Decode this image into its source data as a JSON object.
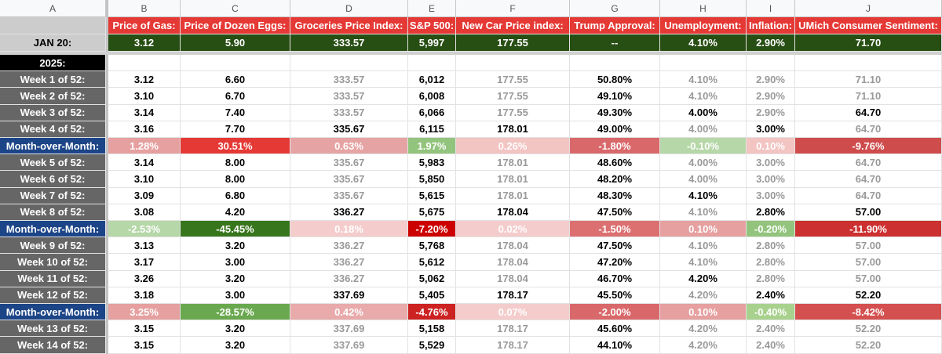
{
  "sheet": {
    "columns": [
      "A",
      "B",
      "C",
      "D",
      "E",
      "F",
      "G",
      "H",
      "I",
      "J"
    ],
    "headers": [
      "Price of Gas:",
      "Price of Dozen Eggs:",
      "Groceries Price Index:",
      "S&P 500:",
      "New Car Price index:",
      "Trump Approval:",
      "Unemployment:",
      "Inflation:",
      "UMich Consumer Sentiment:"
    ],
    "header_fill": "#e53935",
    "baseline": {
      "label": "JAN 20:",
      "fill": "#274e13",
      "cells": [
        "3.12",
        "5.90",
        "333.57",
        "5,997",
        "177.55",
        "--",
        "4.10%",
        "2.90%",
        "71.70"
      ]
    },
    "section": "2025:",
    "week_label_fill": "#666666",
    "mom_label_fill": "#1c4587",
    "rows": [
      {
        "label": "Week 1 of 52:",
        "cells": [
          "3.12",
          "6.60",
          "333.57",
          "6,012",
          "177.55",
          "50.80%",
          "4.10%",
          "2.90%",
          "71.10"
        ],
        "text_colors": [
          "#000",
          "#000",
          "#999",
          "#000",
          "#999",
          "#000",
          "#999",
          "#999",
          "#999"
        ]
      },
      {
        "label": "Week 2 of 52:",
        "cells": [
          "3.10",
          "6.70",
          "333.57",
          "6,008",
          "177.55",
          "49.10%",
          "4.10%",
          "2.90%",
          "71.10"
        ],
        "text_colors": [
          "#000",
          "#000",
          "#999",
          "#000",
          "#999",
          "#000",
          "#999",
          "#999",
          "#999"
        ]
      },
      {
        "label": "Week 3 of 52:",
        "cells": [
          "3.14",
          "7.40",
          "333.57",
          "6,066",
          "177.55",
          "49.30%",
          "4.00%",
          "2.90%",
          "64.70"
        ],
        "text_colors": [
          "#000",
          "#000",
          "#999",
          "#000",
          "#999",
          "#000",
          "#000",
          "#999",
          "#000"
        ]
      },
      {
        "label": "Week 4 of 52:",
        "cells": [
          "3.16",
          "7.70",
          "335.67",
          "6,115",
          "178.01",
          "49.00%",
          "4.00%",
          "3.00%",
          "64.70"
        ],
        "text_colors": [
          "#000",
          "#000",
          "#000",
          "#000",
          "#000",
          "#000",
          "#999",
          "#000",
          "#999"
        ]
      },
      {
        "label": "Month-over-Month:",
        "cells": [
          "1.28%",
          "30.51%",
          "0.63%",
          "1.97%",
          "0.26%",
          "-1.80%",
          "-0.10%",
          "0.10%",
          "-9.76%"
        ],
        "fills": [
          "#e6a0a0",
          "#e53935",
          "#e6a3a3",
          "#93c47d",
          "#f2c4c2",
          "#d9686a",
          "#b6d7a8",
          "#f2c4c2",
          "#cf4c4c"
        ]
      },
      {
        "label": "Week 5 of 52:",
        "cells": [
          "3.14",
          "8.00",
          "335.67",
          "5,983",
          "178.01",
          "48.60%",
          "4.00%",
          "3.00%",
          "64.70"
        ],
        "text_colors": [
          "#000",
          "#000",
          "#999",
          "#000",
          "#999",
          "#000",
          "#999",
          "#999",
          "#999"
        ]
      },
      {
        "label": "Week 6 of 52:",
        "cells": [
          "3.10",
          "8.00",
          "335.67",
          "5,850",
          "178.01",
          "48.20%",
          "4.00%",
          "3.00%",
          "64.70"
        ],
        "text_colors": [
          "#000",
          "#000",
          "#999",
          "#000",
          "#999",
          "#000",
          "#999",
          "#999",
          "#999"
        ]
      },
      {
        "label": "Week 7 of 52:",
        "cells": [
          "3.09",
          "6.80",
          "335.67",
          "5,615",
          "178.01",
          "48.30%",
          "4.10%",
          "3.00%",
          "64.70"
        ],
        "text_colors": [
          "#000",
          "#000",
          "#999",
          "#000",
          "#999",
          "#000",
          "#000",
          "#999",
          "#999"
        ]
      },
      {
        "label": "Week 8 of 52:",
        "cells": [
          "3.08",
          "4.20",
          "336.27",
          "5,675",
          "178.04",
          "47.50%",
          "4.10%",
          "2.80%",
          "57.00"
        ],
        "text_colors": [
          "#000",
          "#000",
          "#000",
          "#000",
          "#000",
          "#000",
          "#999",
          "#000",
          "#000"
        ]
      },
      {
        "label": "Month-over-Month:",
        "cells": [
          "-2.53%",
          "-45.45%",
          "0.18%",
          "-7.20%",
          "0.02%",
          "-1.50%",
          "0.10%",
          "-0.20%",
          "-11.90%"
        ],
        "fills": [
          "#b6d7a8",
          "#38761d",
          "#f4cccc",
          "#cc0000",
          "#f4cccc",
          "#dc7070",
          "#e6a0a0",
          "#93c47d",
          "#cc3030"
        ]
      },
      {
        "label": "Week 9 of 52:",
        "cells": [
          "3.13",
          "3.20",
          "336.27",
          "5,768",
          "178.04",
          "47.50%",
          "4.10%",
          "2.80%",
          "57.00"
        ],
        "text_colors": [
          "#000",
          "#000",
          "#999",
          "#000",
          "#999",
          "#000",
          "#999",
          "#999",
          "#999"
        ]
      },
      {
        "label": "Week 10 of 52:",
        "cells": [
          "3.17",
          "3.00",
          "336.27",
          "5,612",
          "178.04",
          "47.20%",
          "4.10%",
          "2.80%",
          "57.00"
        ],
        "text_colors": [
          "#000",
          "#000",
          "#999",
          "#000",
          "#999",
          "#000",
          "#999",
          "#999",
          "#999"
        ]
      },
      {
        "label": "Week 11 of 52:",
        "cells": [
          "3.26",
          "3.20",
          "336.27",
          "5,062",
          "178.04",
          "46.70%",
          "4.20%",
          "2.80%",
          "57.00"
        ],
        "text_colors": [
          "#000",
          "#000",
          "#999",
          "#000",
          "#999",
          "#000",
          "#000",
          "#999",
          "#999"
        ]
      },
      {
        "label": "Week 12 of 52:",
        "cells": [
          "3.18",
          "3.00",
          "337.69",
          "5,405",
          "178.17",
          "45.50%",
          "4.20%",
          "2.40%",
          "52.20"
        ],
        "text_colors": [
          "#000",
          "#000",
          "#000",
          "#000",
          "#000",
          "#000",
          "#999",
          "#000",
          "#000"
        ]
      },
      {
        "label": "Month-over-Month:",
        "cells": [
          "3.25%",
          "-28.57%",
          "0.42%",
          "-4.76%",
          "0.07%",
          "-2.00%",
          "0.10%",
          "-0.40%",
          "-8.42%"
        ],
        "fills": [
          "#e6a0a0",
          "#6aa84f",
          "#e8aaaa",
          "#cc2222",
          "#f4cccc",
          "#d9686a",
          "#e6a0a0",
          "#a9d18e",
          "#d45050"
        ]
      },
      {
        "label": "Week 13 of 52:",
        "cells": [
          "3.15",
          "3.20",
          "337.69",
          "5,158",
          "178.17",
          "45.60%",
          "4.20%",
          "2.40%",
          "52.20"
        ],
        "text_colors": [
          "#000",
          "#000",
          "#999",
          "#000",
          "#999",
          "#000",
          "#999",
          "#999",
          "#999"
        ]
      },
      {
        "label": "Week 14 of 52:",
        "cells": [
          "3.15",
          "3.20",
          "337.69",
          "5,529",
          "178.17",
          "44.10%",
          "4.20%",
          "2.40%",
          "52.20"
        ],
        "text_colors": [
          "#000",
          "#000",
          "#999",
          "#000",
          "#999",
          "#000",
          "#999",
          "#999",
          "#999"
        ]
      }
    ]
  }
}
